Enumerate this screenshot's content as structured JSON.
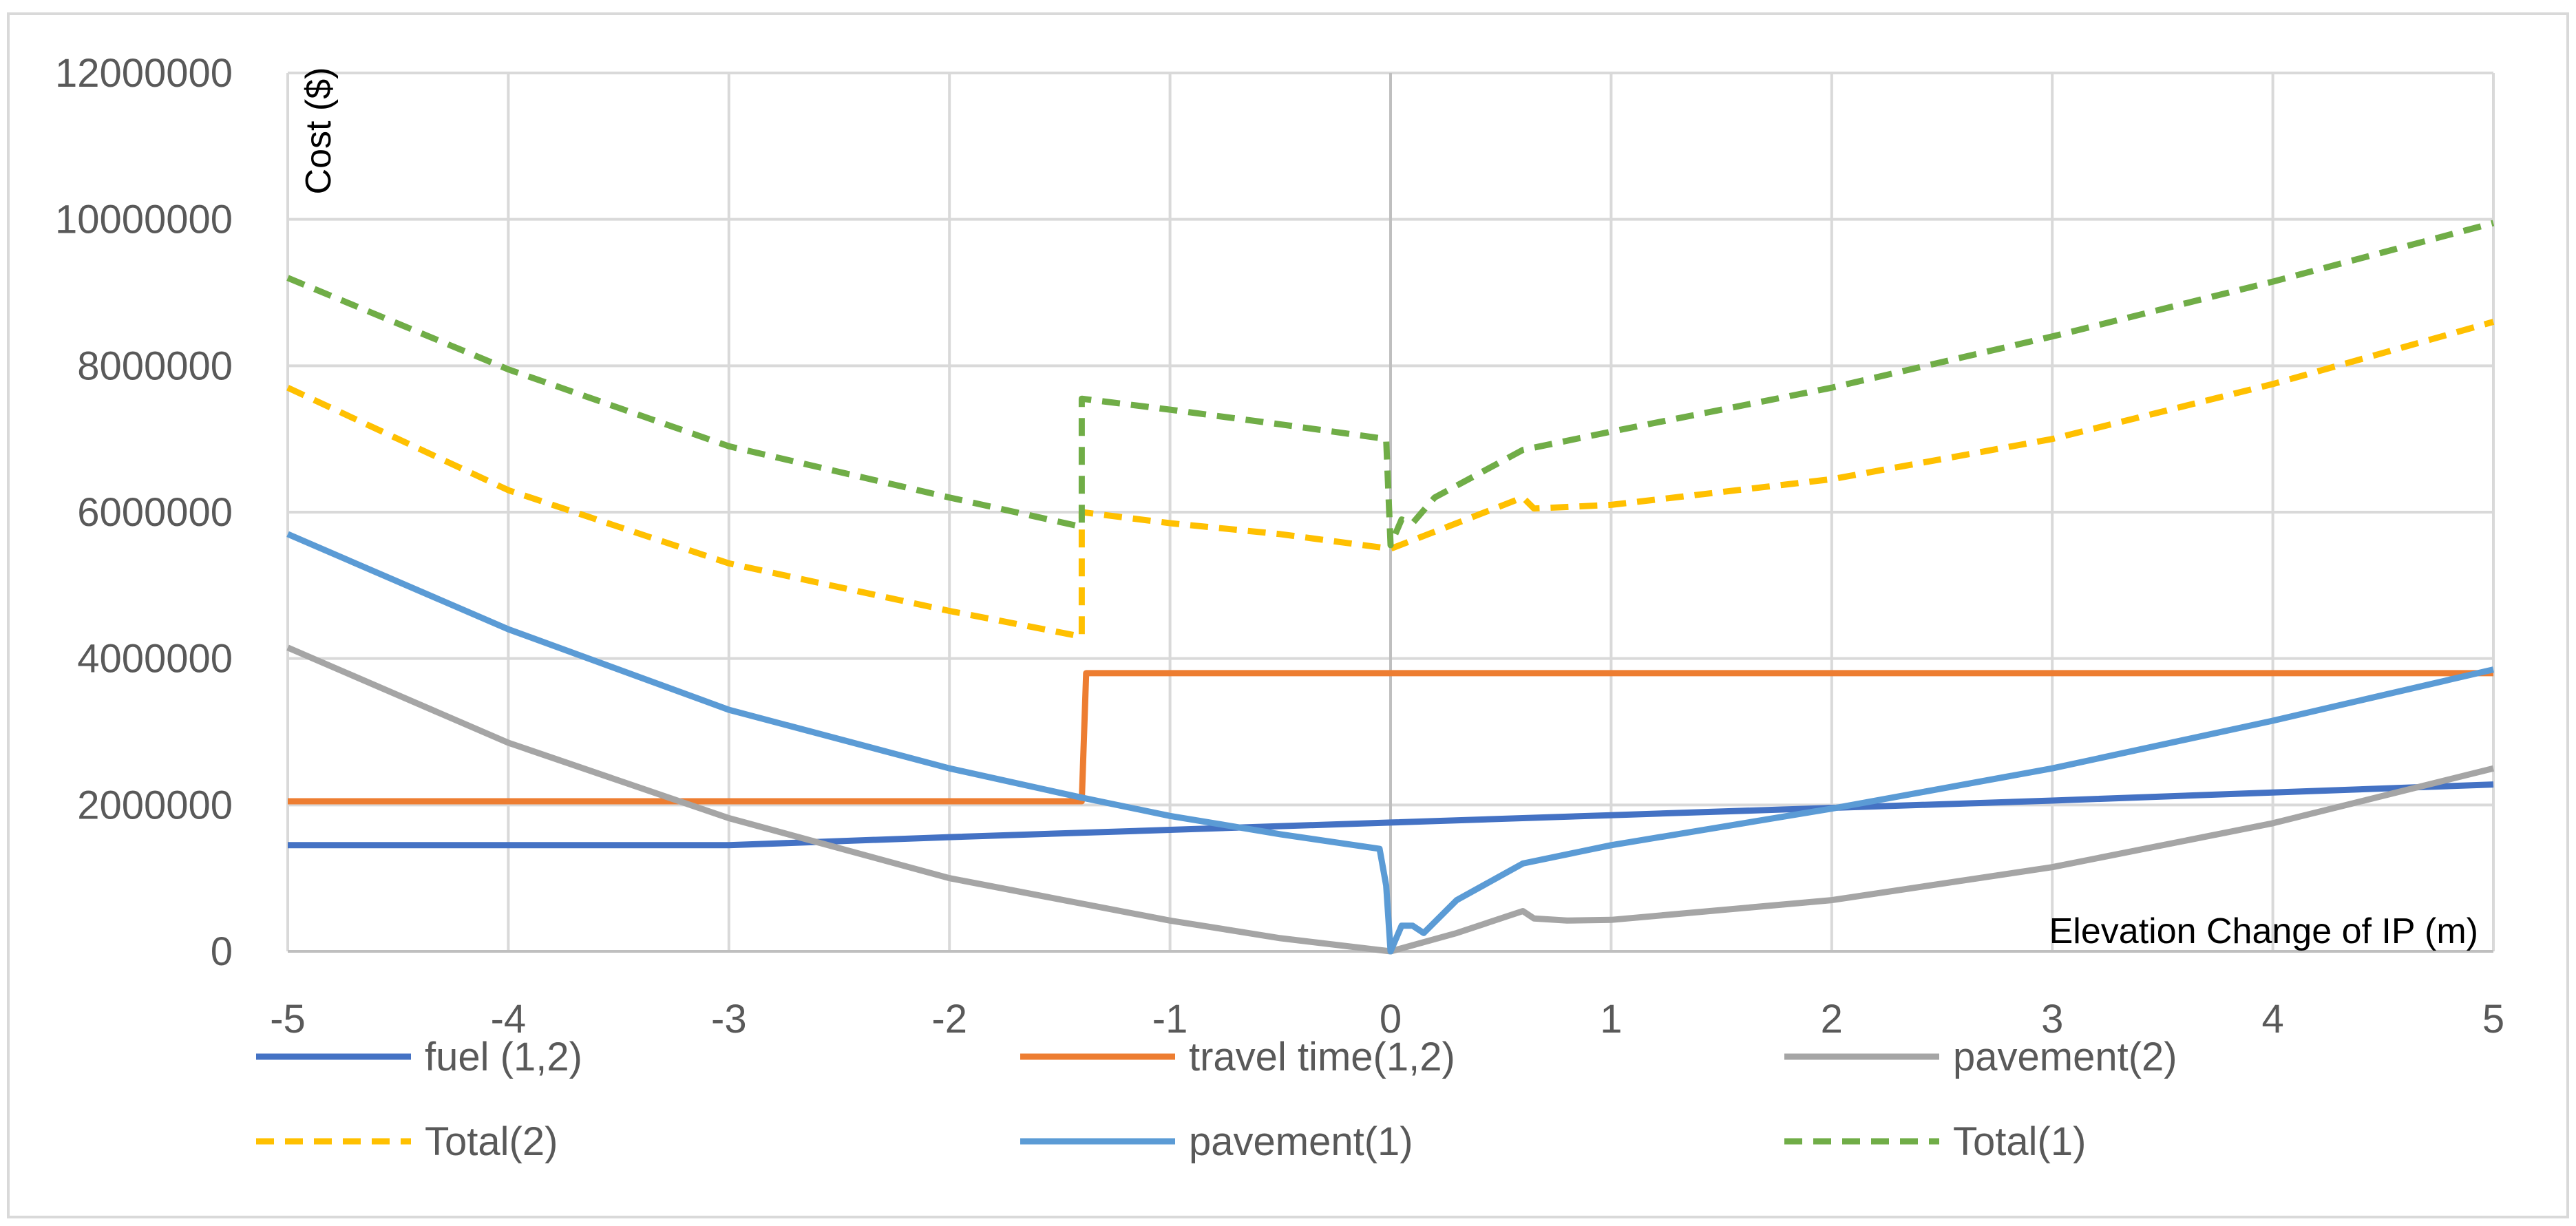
{
  "chart_data": {
    "type": "line",
    "title": "",
    "xlabel": "Elevation Change of IP (m)",
    "ylabel": "Cost ($)",
    "xlim": [
      -5,
      5
    ],
    "ylim": [
      0,
      12000000
    ],
    "x_ticks": [
      -5,
      -4,
      -3,
      -2,
      -1,
      0,
      1,
      2,
      3,
      4,
      5
    ],
    "y_ticks": [
      0,
      2000000,
      4000000,
      6000000,
      8000000,
      10000000,
      12000000
    ],
    "x_tick_labels": [
      "-5",
      "-4",
      "-3",
      "-2",
      "-1",
      "0",
      "1",
      "2",
      "3",
      "4",
      "5"
    ],
    "y_tick_labels": [
      "0",
      "2000000",
      "4000000",
      "6000000",
      "8000000",
      "10000000",
      "12000000"
    ],
    "grid": true,
    "legend_position": "bottom",
    "series": [
      {
        "name": "fuel (1,2)",
        "color": "#4472c4",
        "dash": "solid",
        "x": [
          -5,
          -3,
          -2,
          -1,
          0,
          1,
          2,
          3,
          4,
          5
        ],
        "y": [
          1450000,
          1450000,
          1560000,
          1660000,
          1760000,
          1860000,
          1960000,
          2060000,
          2170000,
          2280000
        ]
      },
      {
        "name": "travel time(1,2)",
        "color": "#ed7d31",
        "dash": "solid",
        "x": [
          -5,
          -1.4,
          -1.38,
          5
        ],
        "y": [
          2050000,
          2050000,
          3800000,
          3800000
        ]
      },
      {
        "name": "pavement(2)",
        "color": "#a5a5a5",
        "dash": "solid",
        "x": [
          -5,
          -4,
          -3,
          -2,
          -1,
          -0.5,
          0,
          0.3,
          0.6,
          0.65,
          0.8,
          1,
          2,
          3,
          4,
          5
        ],
        "y": [
          4150000,
          2850000,
          1820000,
          1000000,
          420000,
          180000,
          0,
          250000,
          550000,
          450000,
          420000,
          430000,
          700000,
          1150000,
          1750000,
          2500000
        ]
      },
      {
        "name": "Total(2)",
        "color": "#ffc000",
        "dash": "dashed",
        "x": [
          -5,
          -4,
          -3,
          -2,
          -1.4,
          -1.4,
          -1,
          -0.5,
          0,
          0.3,
          0.6,
          0.65,
          1,
          2,
          3,
          4,
          5
        ],
        "y": [
          7700000,
          6300000,
          5300000,
          4650000,
          4300000,
          6000000,
          5850000,
          5700000,
          5500000,
          5850000,
          6200000,
          6050000,
          6100000,
          6450000,
          7000000,
          7750000,
          8600000
        ]
      },
      {
        "name": "pavement(1)",
        "color": "#5b9bd5",
        "dash": "solid",
        "x": [
          -5,
          -4,
          -3,
          -2,
          -1.4,
          -1,
          -0.5,
          -0.05,
          -0.02,
          0,
          0.05,
          0.1,
          0.15,
          0.3,
          0.6,
          1,
          2,
          3,
          4,
          5
        ],
        "y": [
          5700000,
          4400000,
          3300000,
          2500000,
          2100000,
          1850000,
          1600000,
          1400000,
          900000,
          0,
          350000,
          350000,
          250000,
          700000,
          1200000,
          1450000,
          1950000,
          2500000,
          3150000,
          3850000
        ]
      },
      {
        "name": "Total(1)",
        "color": "#70ad47",
        "dash": "dashed",
        "x": [
          -5,
          -4,
          -3,
          -2,
          -1.4,
          -1.4,
          -1,
          -0.5,
          -0.02,
          0,
          0.05,
          0.1,
          0.2,
          0.6,
          1,
          2,
          3,
          4,
          5
        ],
        "y": [
          9200000,
          7950000,
          6900000,
          6200000,
          5800000,
          7550000,
          7400000,
          7200000,
          7000000,
          5550000,
          5900000,
          5850000,
          6200000,
          6850000,
          7100000,
          7700000,
          8400000,
          9150000,
          9950000
        ]
      }
    ]
  }
}
